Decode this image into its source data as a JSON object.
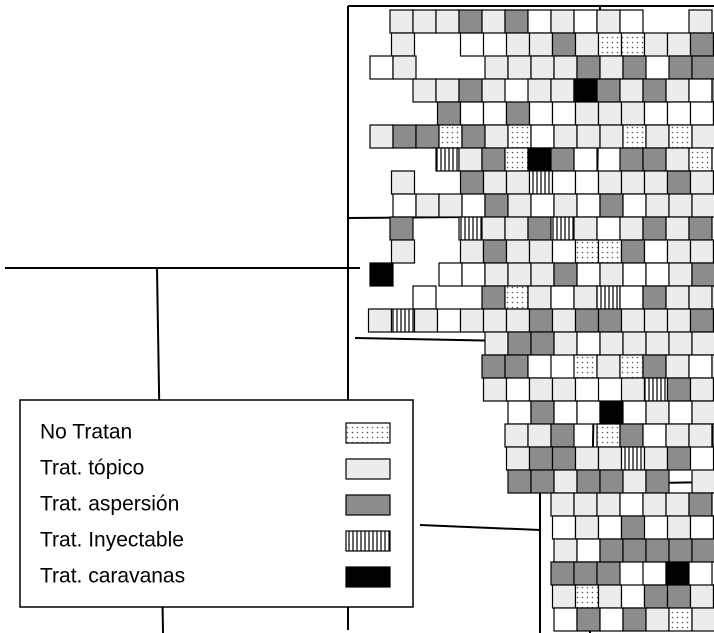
{
  "legend": {
    "items": [
      {
        "label": "No Tratan"
      },
      {
        "label": "Trat. tópico"
      },
      {
        "label": "Trat. aspersión"
      },
      {
        "label": "Trat. Inyectable"
      },
      {
        "label": "Trat. caravanas"
      }
    ]
  }
}
